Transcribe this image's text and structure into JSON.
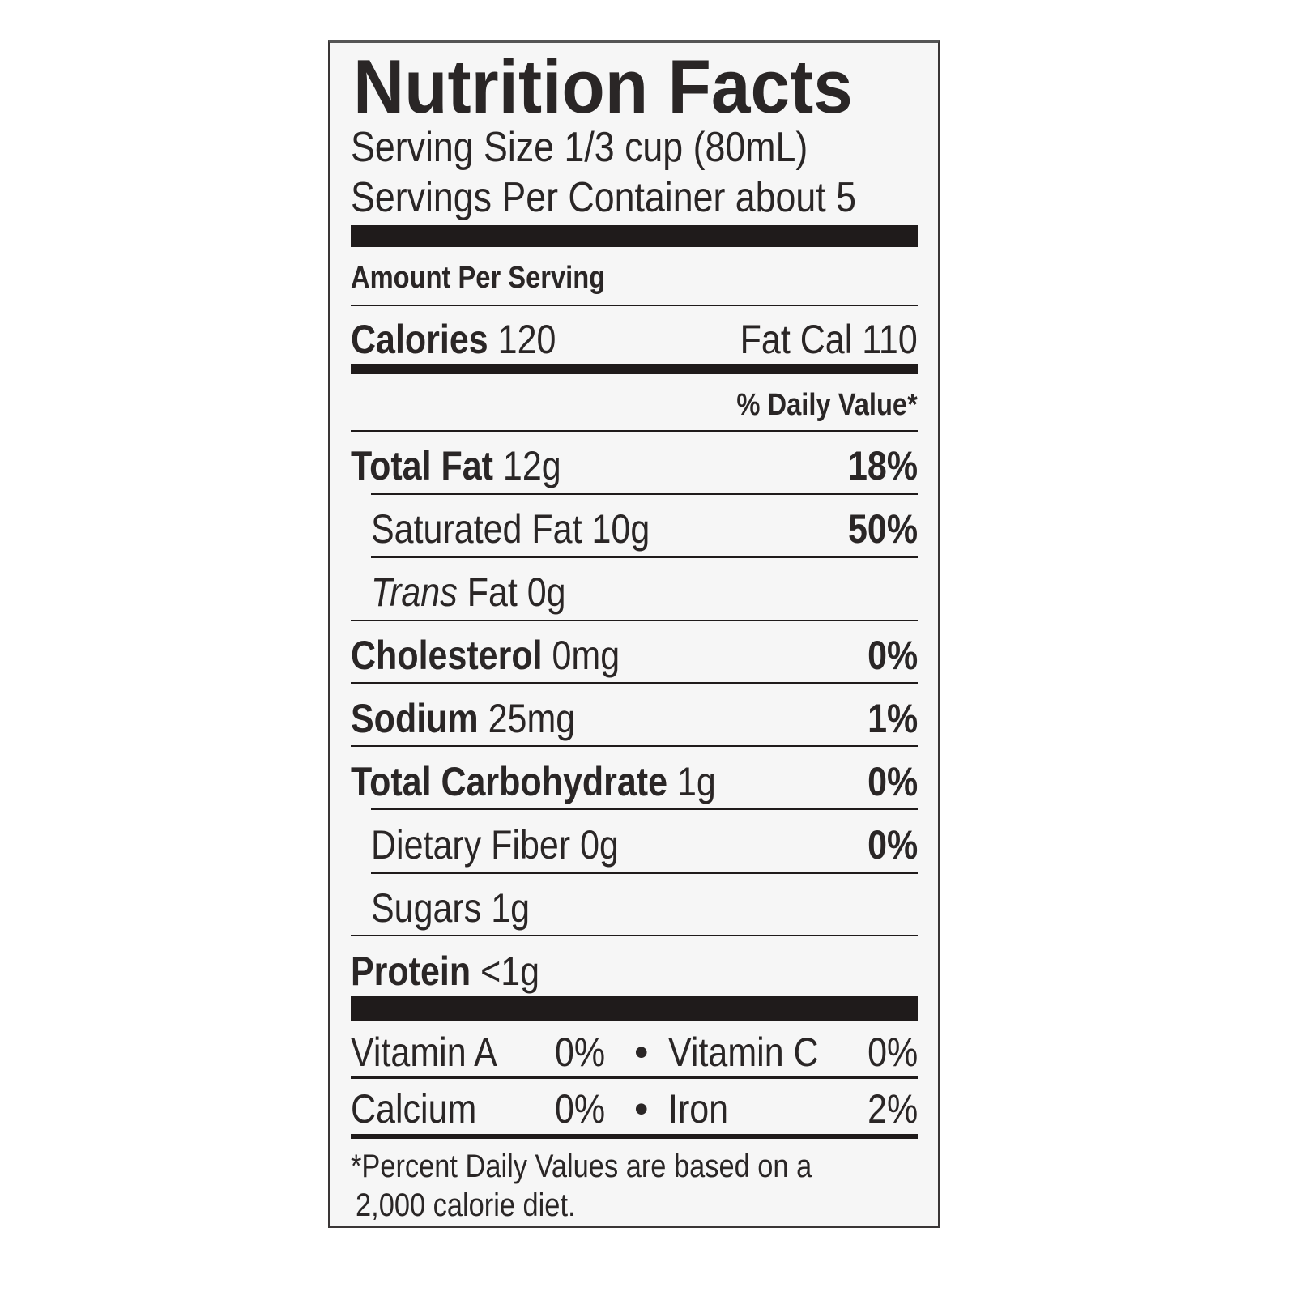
{
  "title": "Nutrition Facts",
  "serving_size": "Serving Size 1/3 cup (80mL)",
  "servings_per_container": "Servings Per Container about 5",
  "amount_per_serving": "Amount Per Serving",
  "calories": {
    "label": "Calories",
    "value": "120",
    "fat_cal": "Fat Cal 110"
  },
  "daily_value_header": "% Daily Value*",
  "nutrients": [
    {
      "label": "Total Fat",
      "amount": "12g",
      "dv": "18%"
    },
    {
      "label": "Saturated Fat",
      "amount": "10g",
      "dv": "50%"
    },
    {
      "label": "Trans",
      "amount": "Fat 0g",
      "dv": ""
    },
    {
      "label": "Cholesterol",
      "amount": "0mg",
      "dv": "0%"
    },
    {
      "label": "Sodium",
      "amount": "25mg",
      "dv": "1%"
    },
    {
      "label": "Total Carbohydrate",
      "amount": "1g",
      "dv": "0%"
    },
    {
      "label": "Dietary Fiber",
      "amount": "0g",
      "dv": "0%"
    },
    {
      "label": "Sugars",
      "amount": "1g",
      "dv": ""
    },
    {
      "label": "Protein",
      "amount": "<1g",
      "dv": ""
    }
  ],
  "vitamins": [
    {
      "a_label": "Vitamin A",
      "a_value": "0%",
      "bullet": "•",
      "b_label": "Vitamin C",
      "b_value": "0%"
    },
    {
      "a_label": "Calcium",
      "a_value": "0%",
      "bullet": "•",
      "b_label": "Iron",
      "b_value": "2%"
    }
  ],
  "footnote_line1": "*Percent Daily Values are based on a",
  "footnote_line2": "2,000 calorie diet."
}
